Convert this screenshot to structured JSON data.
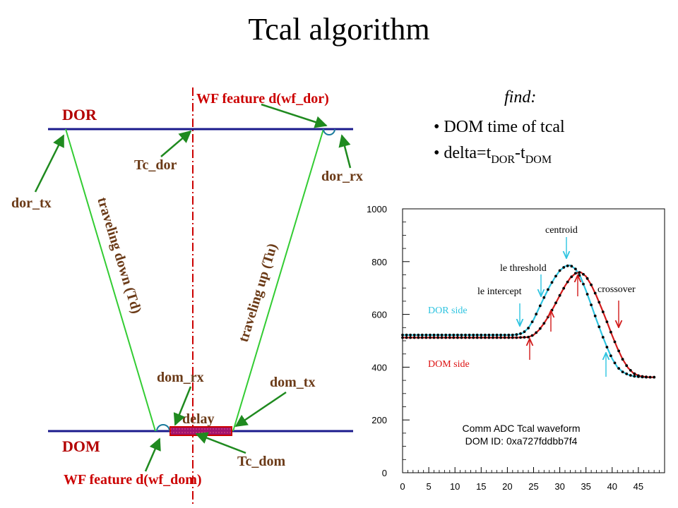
{
  "title": "Tcal algorithm",
  "diagram": {
    "dor_label": "DOR",
    "dom_label": "DOM",
    "wf_feature_dor": "WF feature d(wf_dor)",
    "wf_feature_dom": "WF feature d(wf_dom)",
    "tc_dor": "Tc_dor",
    "tc_dom": "Tc_dom",
    "dor_tx": "dor_tx",
    "dor_rx": "dor_rx",
    "dom_rx": "dom_rx",
    "dom_tx": "dom_tx",
    "delay": "delay",
    "traveling_down": "traveling down (Td)",
    "traveling_up": "traveling up (Tu)"
  },
  "find": {
    "heading": "find:",
    "bullet1": "• DOM time of tcal",
    "bullet2_prefix": "• delta=t",
    "bullet2_sub1": "DOR",
    "bullet2_mid": "-t",
    "bullet2_sub2": "DOM"
  },
  "colors": {
    "navy": "#1a1a8c",
    "green": "#33cc33",
    "red_dash": "#cc0000",
    "cyan": "#2ec4e0",
    "red_curve": "#d11a1a",
    "delay_fill": "#a0146e"
  },
  "chart_data": {
    "type": "line",
    "xlim": [
      0,
      50
    ],
    "ylim": [
      0,
      1000
    ],
    "x_ticks": [
      "0",
      "5",
      "10",
      "15",
      "20",
      "25",
      "30",
      "35",
      "40",
      "45"
    ],
    "y_ticks": [
      "0",
      "200",
      "400",
      "600",
      "800",
      "1000"
    ],
    "series": [
      {
        "name": "DOR side",
        "color": "#2ec4e0",
        "x": [
          0,
          5,
          10,
          15,
          20,
          21,
          22,
          23,
          24,
          25,
          26,
          27,
          28,
          29,
          30,
          31,
          32,
          33,
          34,
          35,
          36,
          37,
          38,
          39,
          40,
          41,
          42,
          43,
          44,
          45,
          46,
          47,
          48
        ],
        "y": [
          522,
          522,
          522,
          522,
          522,
          522,
          524,
          530,
          548,
          580,
          622,
          664,
          704,
          738,
          766,
          782,
          786,
          772,
          740,
          690,
          636,
          580,
          526,
          476,
          432,
          400,
          382,
          372,
          366,
          364,
          362,
          362,
          362
        ]
      },
      {
        "name": "DOM side",
        "color": "#d11a1a",
        "x": [
          0,
          5,
          10,
          15,
          20,
          22,
          23,
          24,
          25,
          26,
          27,
          28,
          29,
          30,
          31,
          32,
          33,
          34,
          35,
          36,
          37,
          38,
          39,
          40,
          41,
          42,
          43,
          44,
          45,
          46,
          47,
          48
        ],
        "y": [
          512,
          512,
          512,
          512,
          512,
          512,
          513,
          514,
          522,
          540,
          566,
          598,
          634,
          672,
          708,
          738,
          756,
          760,
          744,
          712,
          670,
          622,
          572,
          520,
          472,
          430,
          398,
          378,
          368,
          364,
          362,
          362
        ]
      }
    ],
    "annotations": {
      "centroid": "centroid",
      "le_threshold": "le threshold",
      "le_intercept": "le intercept",
      "crossover": "crossover",
      "dor_side": "DOR side",
      "dom_side": "DOM side",
      "caption1": "Comm ADC Tcal waveform",
      "caption2": "DOM ID: 0xa727fddbb7f4"
    }
  }
}
